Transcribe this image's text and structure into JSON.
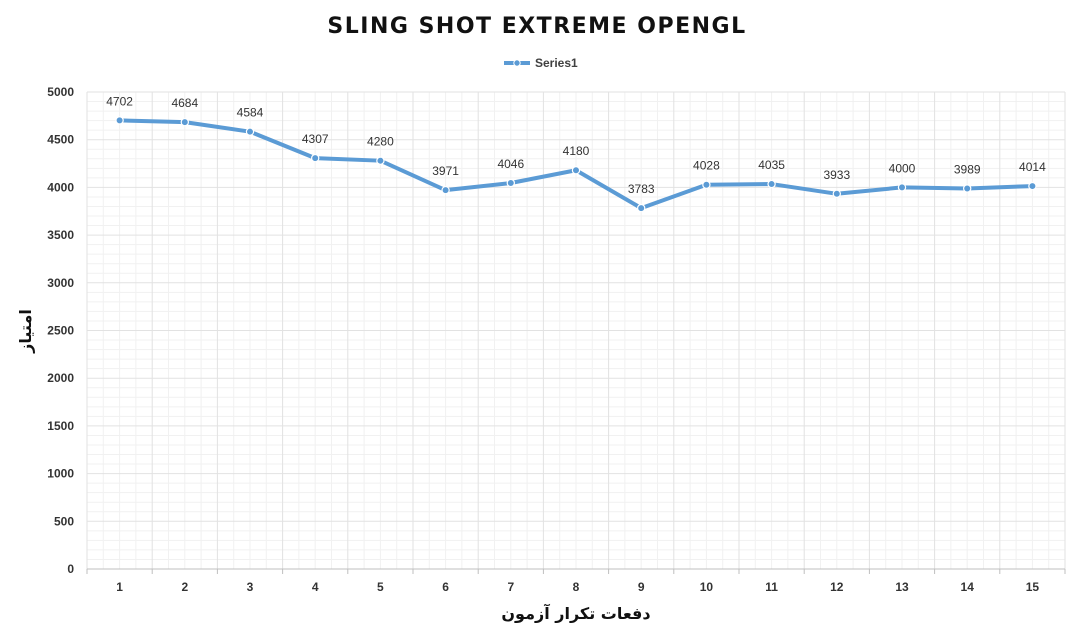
{
  "chart_data": {
    "type": "line",
    "title": "SLING SHOT EXTREME OPENGL",
    "xlabel": "دفعات تکرار آزمون",
    "ylabel": "امتیاز",
    "categories": [
      "1",
      "2",
      "3",
      "4",
      "5",
      "6",
      "7",
      "8",
      "9",
      "10",
      "11",
      "12",
      "13",
      "14",
      "15"
    ],
    "series": [
      {
        "name": "Series1",
        "values": [
          4702,
          4684,
          4584,
          4307,
          4280,
          3971,
          4046,
          4180,
          3783,
          4028,
          4035,
          3933,
          4000,
          3989,
          4014
        ]
      }
    ],
    "ylim": [
      0,
      5000
    ],
    "yticks": [
      0,
      500,
      1000,
      1500,
      2000,
      2500,
      3000,
      3500,
      4000,
      4500,
      5000
    ],
    "grid": true,
    "legend_position": "top-center",
    "colors": {
      "line": "#5b9bd5",
      "marker_fill": "#5b9bd5",
      "marker_stroke": "#ffffff"
    }
  }
}
